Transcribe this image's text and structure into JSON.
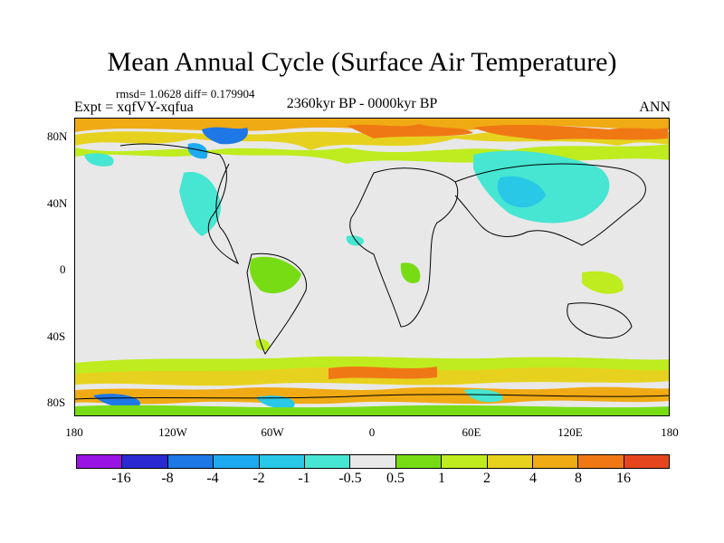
{
  "title": "Mean Annual Cycle (Surface Air Temperature)",
  "stats": "rmsd= 1.0628 diff= 0.179904",
  "experiment": "Expt = xqfVY-xqfua",
  "period": "2360kyr BP - 0000kyr BP",
  "season": "ANN",
  "lat_labels": [
    "80N",
    "40N",
    "0",
    "40S",
    "80S"
  ],
  "lon_labels": [
    "180",
    "120W",
    "60W",
    "0",
    "60E",
    "120E",
    "180"
  ],
  "colorbar": {
    "colors": [
      "#9a14e6",
      "#2a2ad2",
      "#1e78e6",
      "#1eaaf0",
      "#28c8e6",
      "#46e6d2",
      "#e8e8e8",
      "#78dc14",
      "#beec1e",
      "#e6d21e",
      "#f0aa14",
      "#f07814",
      "#e6461e"
    ],
    "labels": [
      "-16",
      "-8",
      "-4",
      "-2",
      "-1",
      "-0.5",
      "0.5",
      "1",
      "2",
      "4",
      "8",
      "16"
    ]
  },
  "palette": {
    "neutral": "#e8e8e8",
    "light_green": "#78dc14",
    "yellow_green": "#beec1e",
    "yellow": "#e6d21e",
    "orange": "#f0aa14",
    "dark_orange": "#f07814",
    "cyan": "#46e6d2",
    "light_blue": "#28c8e6",
    "blue": "#1eaaf0"
  }
}
